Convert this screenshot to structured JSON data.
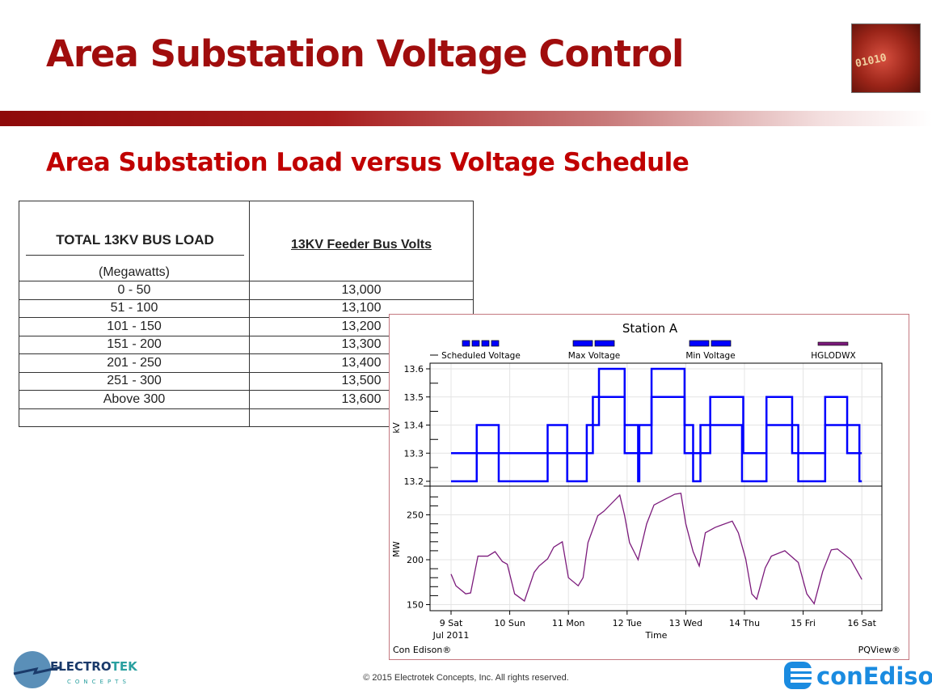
{
  "title": "Area Substation Voltage Control",
  "subtitle": "Area Substation Load versus Voltage Schedule",
  "table": {
    "col1_header": "TOTAL 13KV BUS LOAD",
    "col1_subheader": "(Megawatts)",
    "col2_header": "13KV Feeder Bus Volts",
    "rows": [
      [
        "0  -  50",
        "13,000"
      ],
      [
        "51 - 100",
        "13,100"
      ],
      [
        "101 - 150",
        "13,200"
      ],
      [
        "151 - 200",
        "13,300"
      ],
      [
        "201 - 250",
        "13,400"
      ],
      [
        "251 - 300",
        "13,500"
      ],
      [
        "Above 300",
        "13,600"
      ],
      [
        "",
        ""
      ]
    ]
  },
  "chart_data": {
    "type": "line",
    "title": "Station A",
    "xlabel": "Time",
    "x_sublabel": "Jul 2011",
    "x_ticks": [
      "9 Sat",
      "10 Sun",
      "11 Mon",
      "12 Tue",
      "13 Wed",
      "14 Thu",
      "15 Fri",
      "16 Sat"
    ],
    "xlim": [
      "2011-07-09 00:00",
      "2011-07-16 00:00"
    ],
    "grid": true,
    "legend_position": "top",
    "legend": [
      "Scheduled Voltage",
      "Max Voltage",
      "Min Voltage",
      "HGLODWX"
    ],
    "colors": {
      "voltage": "#0000ff",
      "load": "#7b1a7b"
    },
    "footer_left": "Con Edison®",
    "footer_right": "PQView®",
    "panels": [
      {
        "ylabel": "kV",
        "ylim": [
          13.2,
          13.6
        ],
        "y_ticks": [
          "13.2",
          "13.3",
          "13.4",
          "13.5",
          "13.6"
        ],
        "step": true,
        "series": [
          {
            "name": "Max Voltage",
            "points": [
              [
                "2011-07-09 00:00",
                13.3
              ],
              [
                "2011-07-11 10:00",
                13.5
              ],
              [
                "2011-07-11 23:00",
                13.3
              ],
              [
                "2011-07-12 10:00",
                13.5
              ],
              [
                "2011-07-12 23:30",
                13.3
              ],
              [
                "2011-07-13 10:00",
                13.5
              ],
              [
                "2011-07-13 23:30",
                13.3
              ],
              [
                "2011-07-14 09:00",
                13.5
              ],
              [
                "2011-07-14 19:30",
                13.3
              ],
              [
                "2011-07-15 09:00",
                13.5
              ],
              [
                "2011-07-15 18:00",
                13.3
              ],
              [
                "2011-07-16 00:00",
                13.3
              ]
            ]
          },
          {
            "name": "Min Voltage",
            "points": [
              [
                "2011-07-09 00:00",
                13.2
              ],
              [
                "2011-07-09 10:30",
                13.4
              ],
              [
                "2011-07-09 19:30",
                13.2
              ],
              [
                "2011-07-10 15:30",
                13.4
              ],
              [
                "2011-07-10 23:30",
                13.2
              ],
              [
                "2011-07-11 07:30",
                13.4
              ],
              [
                "2011-07-11 12:30",
                13.6
              ],
              [
                "2011-07-11 23:00",
                13.4
              ],
              [
                "2011-07-12 04:30",
                13.2
              ],
              [
                "2011-07-12 05:00",
                13.4
              ],
              [
                "2011-07-12 10:00",
                13.6
              ],
              [
                "2011-07-12 23:30",
                13.4
              ],
              [
                "2011-07-13 03:00",
                13.2
              ],
              [
                "2011-07-13 06:00",
                13.4
              ],
              [
                "2011-07-13 23:00",
                13.2
              ],
              [
                "2011-07-14 09:00",
                13.4
              ],
              [
                "2011-07-14 22:00",
                13.2
              ],
              [
                "2011-07-15 09:00",
                13.4
              ],
              [
                "2011-07-15 23:00",
                13.2
              ],
              [
                "2011-07-16 00:00",
                13.2
              ]
            ]
          }
        ]
      },
      {
        "ylabel": "MW",
        "ylim": [
          145,
          280
        ],
        "y_ticks": [
          "150",
          "200",
          "250"
        ],
        "series": [
          {
            "name": "HGLODWX",
            "points": [
              [
                "2011-07-09 00:00",
                184
              ],
              [
                "2011-07-09 02:00",
                171
              ],
              [
                "2011-07-09 06:00",
                162
              ],
              [
                "2011-07-09 08:00",
                163
              ],
              [
                "2011-07-09 11:00",
                204
              ],
              [
                "2011-07-09 15:00",
                204
              ],
              [
                "2011-07-09 18:00",
                209
              ],
              [
                "2011-07-09 21:00",
                198
              ],
              [
                "2011-07-09 23:00",
                195
              ],
              [
                "2011-07-10 02:00",
                162
              ],
              [
                "2011-07-10 06:00",
                154
              ],
              [
                "2011-07-10 10:00",
                186
              ],
              [
                "2011-07-10 12:00",
                193
              ],
              [
                "2011-07-10 15:30",
                201
              ],
              [
                "2011-07-10 18:00",
                214
              ],
              [
                "2011-07-10 21:30",
                220
              ],
              [
                "2011-07-11 00:00",
                180
              ],
              [
                "2011-07-11 04:00",
                171
              ],
              [
                "2011-07-11 06:00",
                180
              ],
              [
                "2011-07-11 08:00",
                219
              ],
              [
                "2011-07-11 12:00",
                249
              ],
              [
                "2011-07-11 14:30",
                254
              ],
              [
                "2011-07-11 21:00",
                272
              ],
              [
                "2011-07-11 23:00",
                249
              ],
              [
                "2011-07-12 01:00",
                219
              ],
              [
                "2011-07-12 04:30",
                200
              ],
              [
                "2011-07-12 08:00",
                240
              ],
              [
                "2011-07-12 11:00",
                261
              ],
              [
                "2011-07-12 19:30",
                273
              ],
              [
                "2011-07-12 22:00",
                274
              ],
              [
                "2011-07-13 00:00",
                240
              ],
              [
                "2011-07-13 03:00",
                209
              ],
              [
                "2011-07-13 05:30",
                193
              ],
              [
                "2011-07-13 08:00",
                230
              ],
              [
                "2011-07-13 12:00",
                236
              ],
              [
                "2011-07-13 19:00",
                243
              ],
              [
                "2011-07-13 21:30",
                230
              ],
              [
                "2011-07-14 00:30",
                201
              ],
              [
                "2011-07-14 03:00",
                162
              ],
              [
                "2011-07-14 05:00",
                156
              ],
              [
                "2011-07-14 08:30",
                191
              ],
              [
                "2011-07-14 11:00",
                204
              ],
              [
                "2011-07-14 16:30",
                210
              ],
              [
                "2011-07-14 22:00",
                197
              ],
              [
                "2011-07-15 01:30",
                162
              ],
              [
                "2011-07-15 04:30",
                151
              ],
              [
                "2011-07-15 08:00",
                187
              ],
              [
                "2011-07-15 11:30",
                211
              ],
              [
                "2011-07-15 14:00",
                212
              ],
              [
                "2011-07-15 19:30",
                200
              ],
              [
                "2011-07-16 00:00",
                178
              ]
            ]
          }
        ]
      }
    ]
  },
  "footer": {
    "copyright": "© 2015 Electrotek Concepts,  Inc. All rights reserved.",
    "logo_left": "ELECTROTEK CONCEPTS",
    "logo_right": "conEdison"
  }
}
